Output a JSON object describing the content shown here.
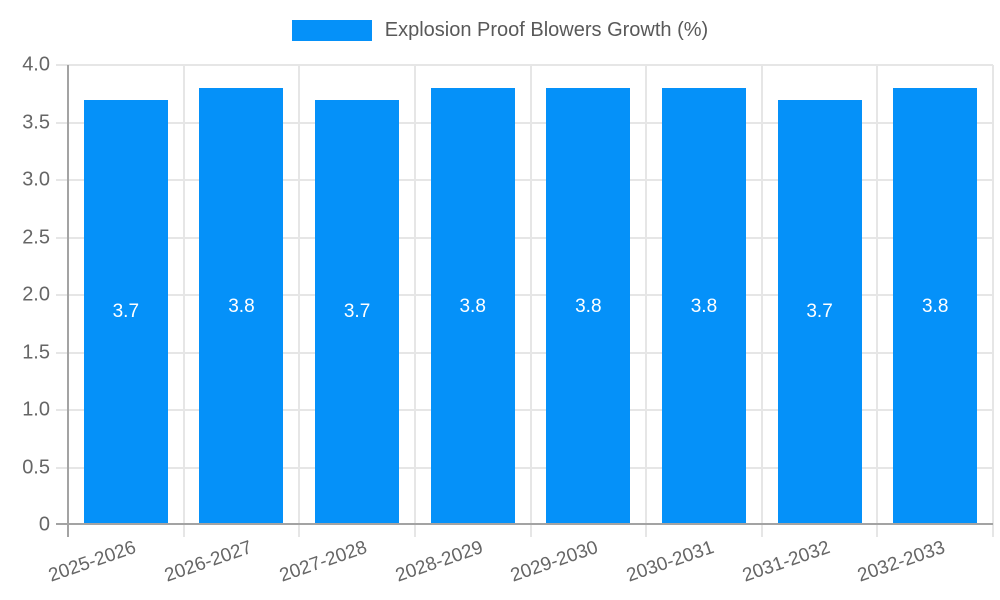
{
  "chart_data": {
    "type": "bar",
    "title": "",
    "legend_label": "Explosion Proof Blowers Growth (%)",
    "categories": [
      "2025-2026",
      "2026-2027",
      "2027-2028",
      "2028-2029",
      "2029-2030",
      "2030-2031",
      "2031-2032",
      "2032-2033"
    ],
    "values": [
      3.7,
      3.8,
      3.7,
      3.8,
      3.8,
      3.8,
      3.7,
      3.8
    ],
    "value_labels": [
      "3.7",
      "3.8",
      "3.7",
      "3.8",
      "3.8",
      "3.8",
      "3.7",
      "3.8"
    ],
    "xlabel": "",
    "ylabel": "",
    "ylim": [
      0,
      4
    ],
    "yticks": [
      "0",
      "0.5",
      "1.0",
      "1.5",
      "2.0",
      "2.5",
      "3.0",
      "3.5",
      "4.0"
    ],
    "grid": true,
    "legend_position": "top-center",
    "value_label_position": "center-of-bar"
  },
  "colors": {
    "bar": "#0591f9",
    "grid": "#e6e6e6",
    "axis": "#a3a3a3",
    "tick_text": "#666666",
    "legend_text": "#595959",
    "bar_label": "#ffffff",
    "background": "#ffffff"
  }
}
